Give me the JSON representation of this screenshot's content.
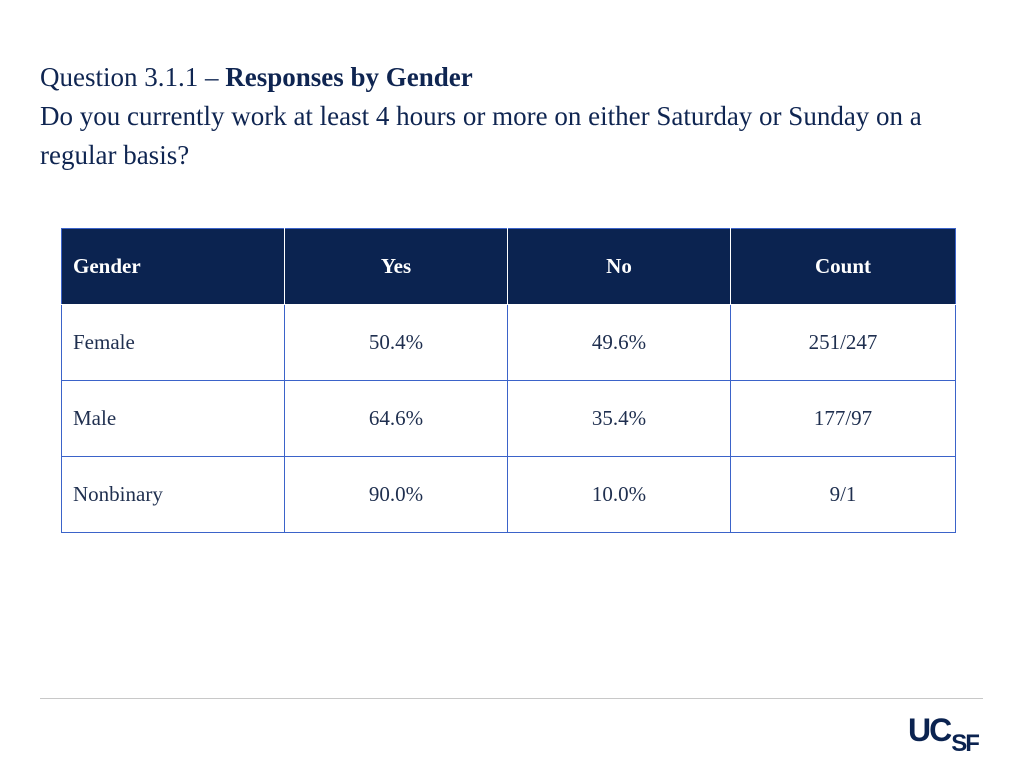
{
  "heading": {
    "prefix": "Question 3.1.1 – ",
    "title": "Responses by Gender",
    "question": "Do you currently work at least 4 hours or more on either Saturday or Sunday on a regular basis?"
  },
  "table": {
    "columns": [
      "Gender",
      "Yes",
      "No",
      "Count"
    ],
    "rows": [
      {
        "gender": "Female",
        "yes": "50.4%",
        "no": "49.6%",
        "count": "251/247"
      },
      {
        "gender": "Male",
        "yes": "64.6%",
        "no": "35.4%",
        "count": "177/97"
      },
      {
        "gender": "Nonbinary",
        "yes": "90.0%",
        "no": "10.0%",
        "count": "9/1"
      }
    ]
  },
  "logo": {
    "text_main": "UC",
    "text_small": "SF"
  },
  "colors": {
    "header_bg": "#0b2350",
    "border": "#3b63c9",
    "text": "#0f2551"
  }
}
